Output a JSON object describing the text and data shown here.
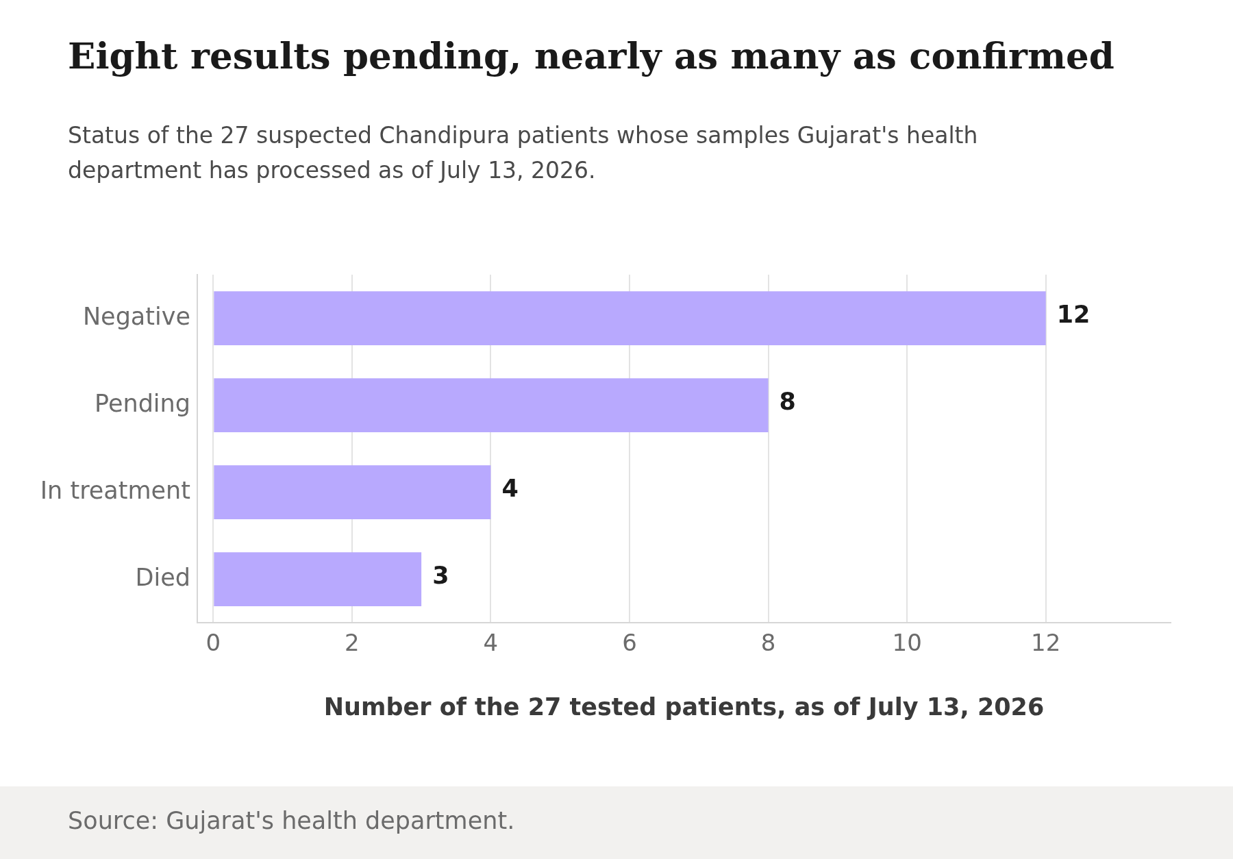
{
  "chart_data": {
    "type": "bar",
    "orientation": "horizontal",
    "title": "Eight results pending, nearly as many as confirmed",
    "subtitle": "Status of the 27 suspected Chandipura patients whose samples Gujarat's health department has processed as of July 13, 2026.",
    "xlabel": "Number of the 27 tested patients, as of July 13, 2026",
    "categories": [
      "Negative",
      "Pending",
      "In treatment",
      "Died"
    ],
    "values": [
      12,
      8,
      4,
      3
    ],
    "color": "#b8a9fe",
    "xlim": [
      -0.23,
      13.8
    ],
    "xticks": [
      0,
      2,
      4,
      6,
      8,
      10,
      12
    ],
    "grid": "x",
    "data_labels": true,
    "legend": false,
    "annotations": [
      "Source: Gujarat's health department."
    ]
  }
}
